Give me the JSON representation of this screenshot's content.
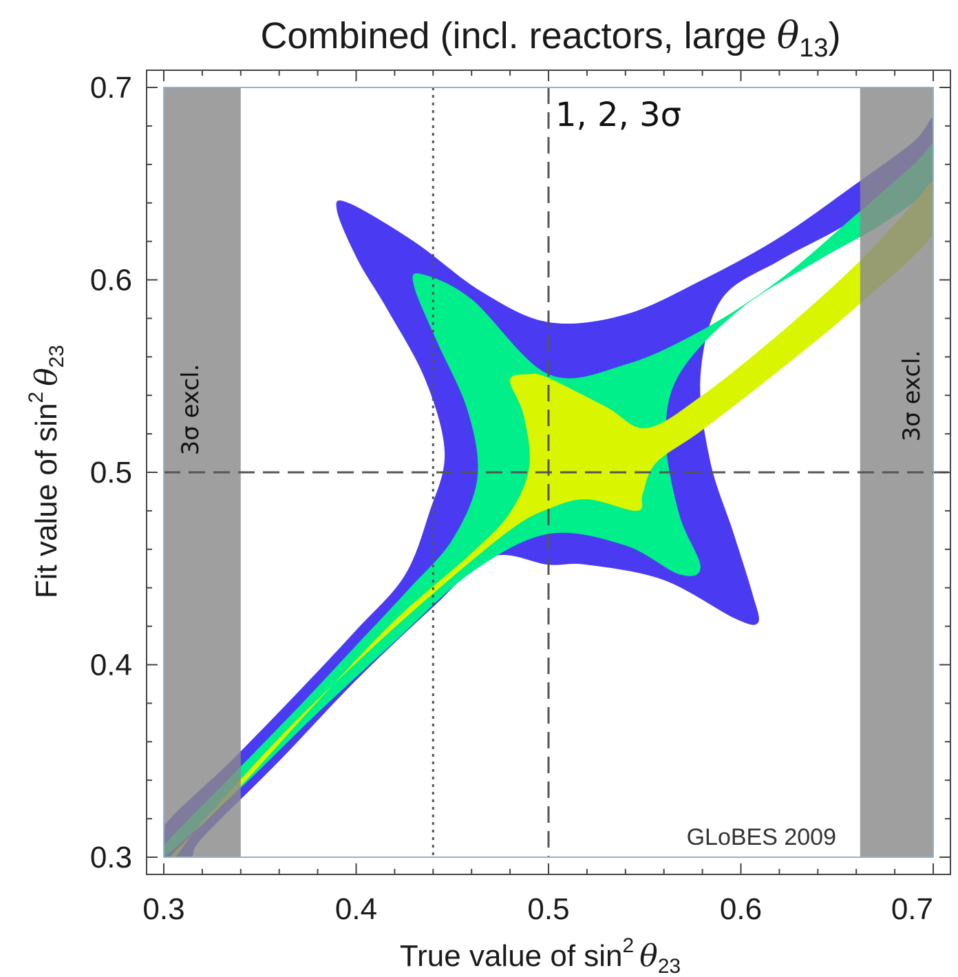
{
  "chart_data": {
    "type": "heatmap",
    "title": "Combined (incl. reactors, large θ₁₃)",
    "title_parts": {
      "main": "Combined (incl. reactors, large ",
      "theta": "θ",
      "sub": "13",
      "close": ")"
    },
    "xlabel": "True value of sin² θ₂₃",
    "xlabel_parts": {
      "main": "True value of sin",
      "sup": "2",
      "theta": "θ",
      "sub": "23"
    },
    "ylabel": "Fit value of sin² θ₂₃",
    "ylabel_parts": {
      "main": "Fit value of sin",
      "sup": "2",
      "theta": "θ",
      "sub": "23"
    },
    "xlim": [
      0.3,
      0.7
    ],
    "ylim": [
      0.3,
      0.7
    ],
    "x_ticks": [
      "0.3",
      "0.4",
      "0.5",
      "0.6",
      "0.7"
    ],
    "y_ticks": [
      "0.3",
      "0.4",
      "0.5",
      "0.6",
      "0.7"
    ],
    "grid": false,
    "contour_levels": [
      {
        "level": "3σ",
        "color": "#4a3bf2"
      },
      {
        "level": "2σ",
        "color": "#00ef8a"
      },
      {
        "level": "1σ",
        "color": "#d9f500"
      }
    ],
    "contours": {
      "3sigma": [
        [
          0.3,
          0.316
        ],
        [
          0.335,
          0.35
        ],
        [
          0.37,
          0.386
        ],
        [
          0.4,
          0.418
        ],
        [
          0.425,
          0.446
        ],
        [
          0.438,
          0.479
        ],
        [
          0.446,
          0.51
        ],
        [
          0.436,
          0.548
        ],
        [
          0.416,
          0.585
        ],
        [
          0.401,
          0.61
        ],
        [
          0.39,
          0.636
        ],
        [
          0.396,
          0.64
        ],
        [
          0.43,
          0.62
        ],
        [
          0.465,
          0.594
        ],
        [
          0.5,
          0.578
        ],
        [
          0.54,
          0.582
        ],
        [
          0.58,
          0.6
        ],
        [
          0.62,
          0.622
        ],
        [
          0.66,
          0.65
        ],
        [
          0.69,
          0.672
        ],
        [
          0.7,
          0.684
        ],
        [
          0.7,
          0.664
        ],
        [
          0.675,
          0.642
        ],
        [
          0.65,
          0.626
        ],
        [
          0.62,
          0.61
        ],
        [
          0.59,
          0.59
        ],
        [
          0.579,
          0.55
        ],
        [
          0.584,
          0.506
        ],
        [
          0.596,
          0.469
        ],
        [
          0.606,
          0.437
        ],
        [
          0.609,
          0.422
        ],
        [
          0.597,
          0.424
        ],
        [
          0.56,
          0.444
        ],
        [
          0.52,
          0.452
        ],
        [
          0.5,
          0.452
        ],
        [
          0.47,
          0.456
        ],
        [
          0.44,
          0.43
        ],
        [
          0.4,
          0.392
        ],
        [
          0.36,
          0.35
        ],
        [
          0.32,
          0.31
        ],
        [
          0.314,
          0.3
        ],
        [
          0.3,
          0.3
        ]
      ],
      "2sigma": [
        [
          0.3,
          0.306
        ],
        [
          0.335,
          0.342
        ],
        [
          0.37,
          0.378
        ],
        [
          0.4,
          0.41
        ],
        [
          0.428,
          0.44
        ],
        [
          0.45,
          0.465
        ],
        [
          0.463,
          0.497
        ],
        [
          0.458,
          0.532
        ],
        [
          0.442,
          0.568
        ],
        [
          0.43,
          0.597
        ],
        [
          0.434,
          0.603
        ],
        [
          0.46,
          0.59
        ],
        [
          0.5,
          0.551
        ],
        [
          0.54,
          0.556
        ],
        [
          0.58,
          0.574
        ],
        [
          0.62,
          0.6
        ],
        [
          0.66,
          0.634
        ],
        [
          0.69,
          0.66
        ],
        [
          0.7,
          0.67
        ],
        [
          0.7,
          0.65
        ],
        [
          0.675,
          0.63
        ],
        [
          0.64,
          0.61
        ],
        [
          0.6,
          0.585
        ],
        [
          0.568,
          0.551
        ],
        [
          0.561,
          0.518
        ],
        [
          0.568,
          0.478
        ],
        [
          0.579,
          0.451
        ],
        [
          0.568,
          0.447
        ],
        [
          0.54,
          0.462
        ],
        [
          0.5,
          0.468
        ],
        [
          0.46,
          0.448
        ],
        [
          0.42,
          0.412
        ],
        [
          0.38,
          0.375
        ],
        [
          0.34,
          0.336
        ],
        [
          0.3,
          0.3
        ]
      ],
      "1sigma": [
        [
          0.303,
          0.3
        ],
        [
          0.34,
          0.337
        ],
        [
          0.38,
          0.381
        ],
        [
          0.42,
          0.423
        ],
        [
          0.46,
          0.458
        ],
        [
          0.48,
          0.479
        ],
        [
          0.49,
          0.503
        ],
        [
          0.487,
          0.53
        ],
        [
          0.48,
          0.548
        ],
        [
          0.49,
          0.551
        ],
        [
          0.5,
          0.549
        ],
        [
          0.53,
          0.534
        ],
        [
          0.551,
          0.523
        ],
        [
          0.58,
          0.54
        ],
        [
          0.62,
          0.572
        ],
        [
          0.66,
          0.608
        ],
        [
          0.69,
          0.64
        ],
        [
          0.7,
          0.65
        ],
        [
          0.7,
          0.624
        ],
        [
          0.66,
          0.586
        ],
        [
          0.62,
          0.553
        ],
        [
          0.58,
          0.522
        ],
        [
          0.556,
          0.505
        ],
        [
          0.549,
          0.489
        ],
        [
          0.546,
          0.48
        ],
        [
          0.52,
          0.486
        ],
        [
          0.5,
          0.481
        ],
        [
          0.48,
          0.47
        ],
        [
          0.44,
          0.437
        ],
        [
          0.4,
          0.401
        ],
        [
          0.36,
          0.362
        ],
        [
          0.32,
          0.318
        ],
        [
          0.306,
          0.3
        ]
      ]
    },
    "excluded_bands": [
      {
        "x_range": [
          0.3,
          0.34
        ],
        "label": "3σ excl."
      },
      {
        "x_range": [
          0.662,
          0.7
        ],
        "label": "3σ excl."
      }
    ],
    "reference_lines": [
      {
        "orientation": "vertical",
        "value": 0.44,
        "style": "dotted"
      },
      {
        "orientation": "vertical",
        "value": 0.5,
        "style": "dashed"
      },
      {
        "orientation": "horizontal",
        "value": 0.5,
        "style": "dashed"
      }
    ],
    "annotations": {
      "sigma_levels": "1, 2, 3σ",
      "watermark": "GLoBES 2009"
    }
  }
}
